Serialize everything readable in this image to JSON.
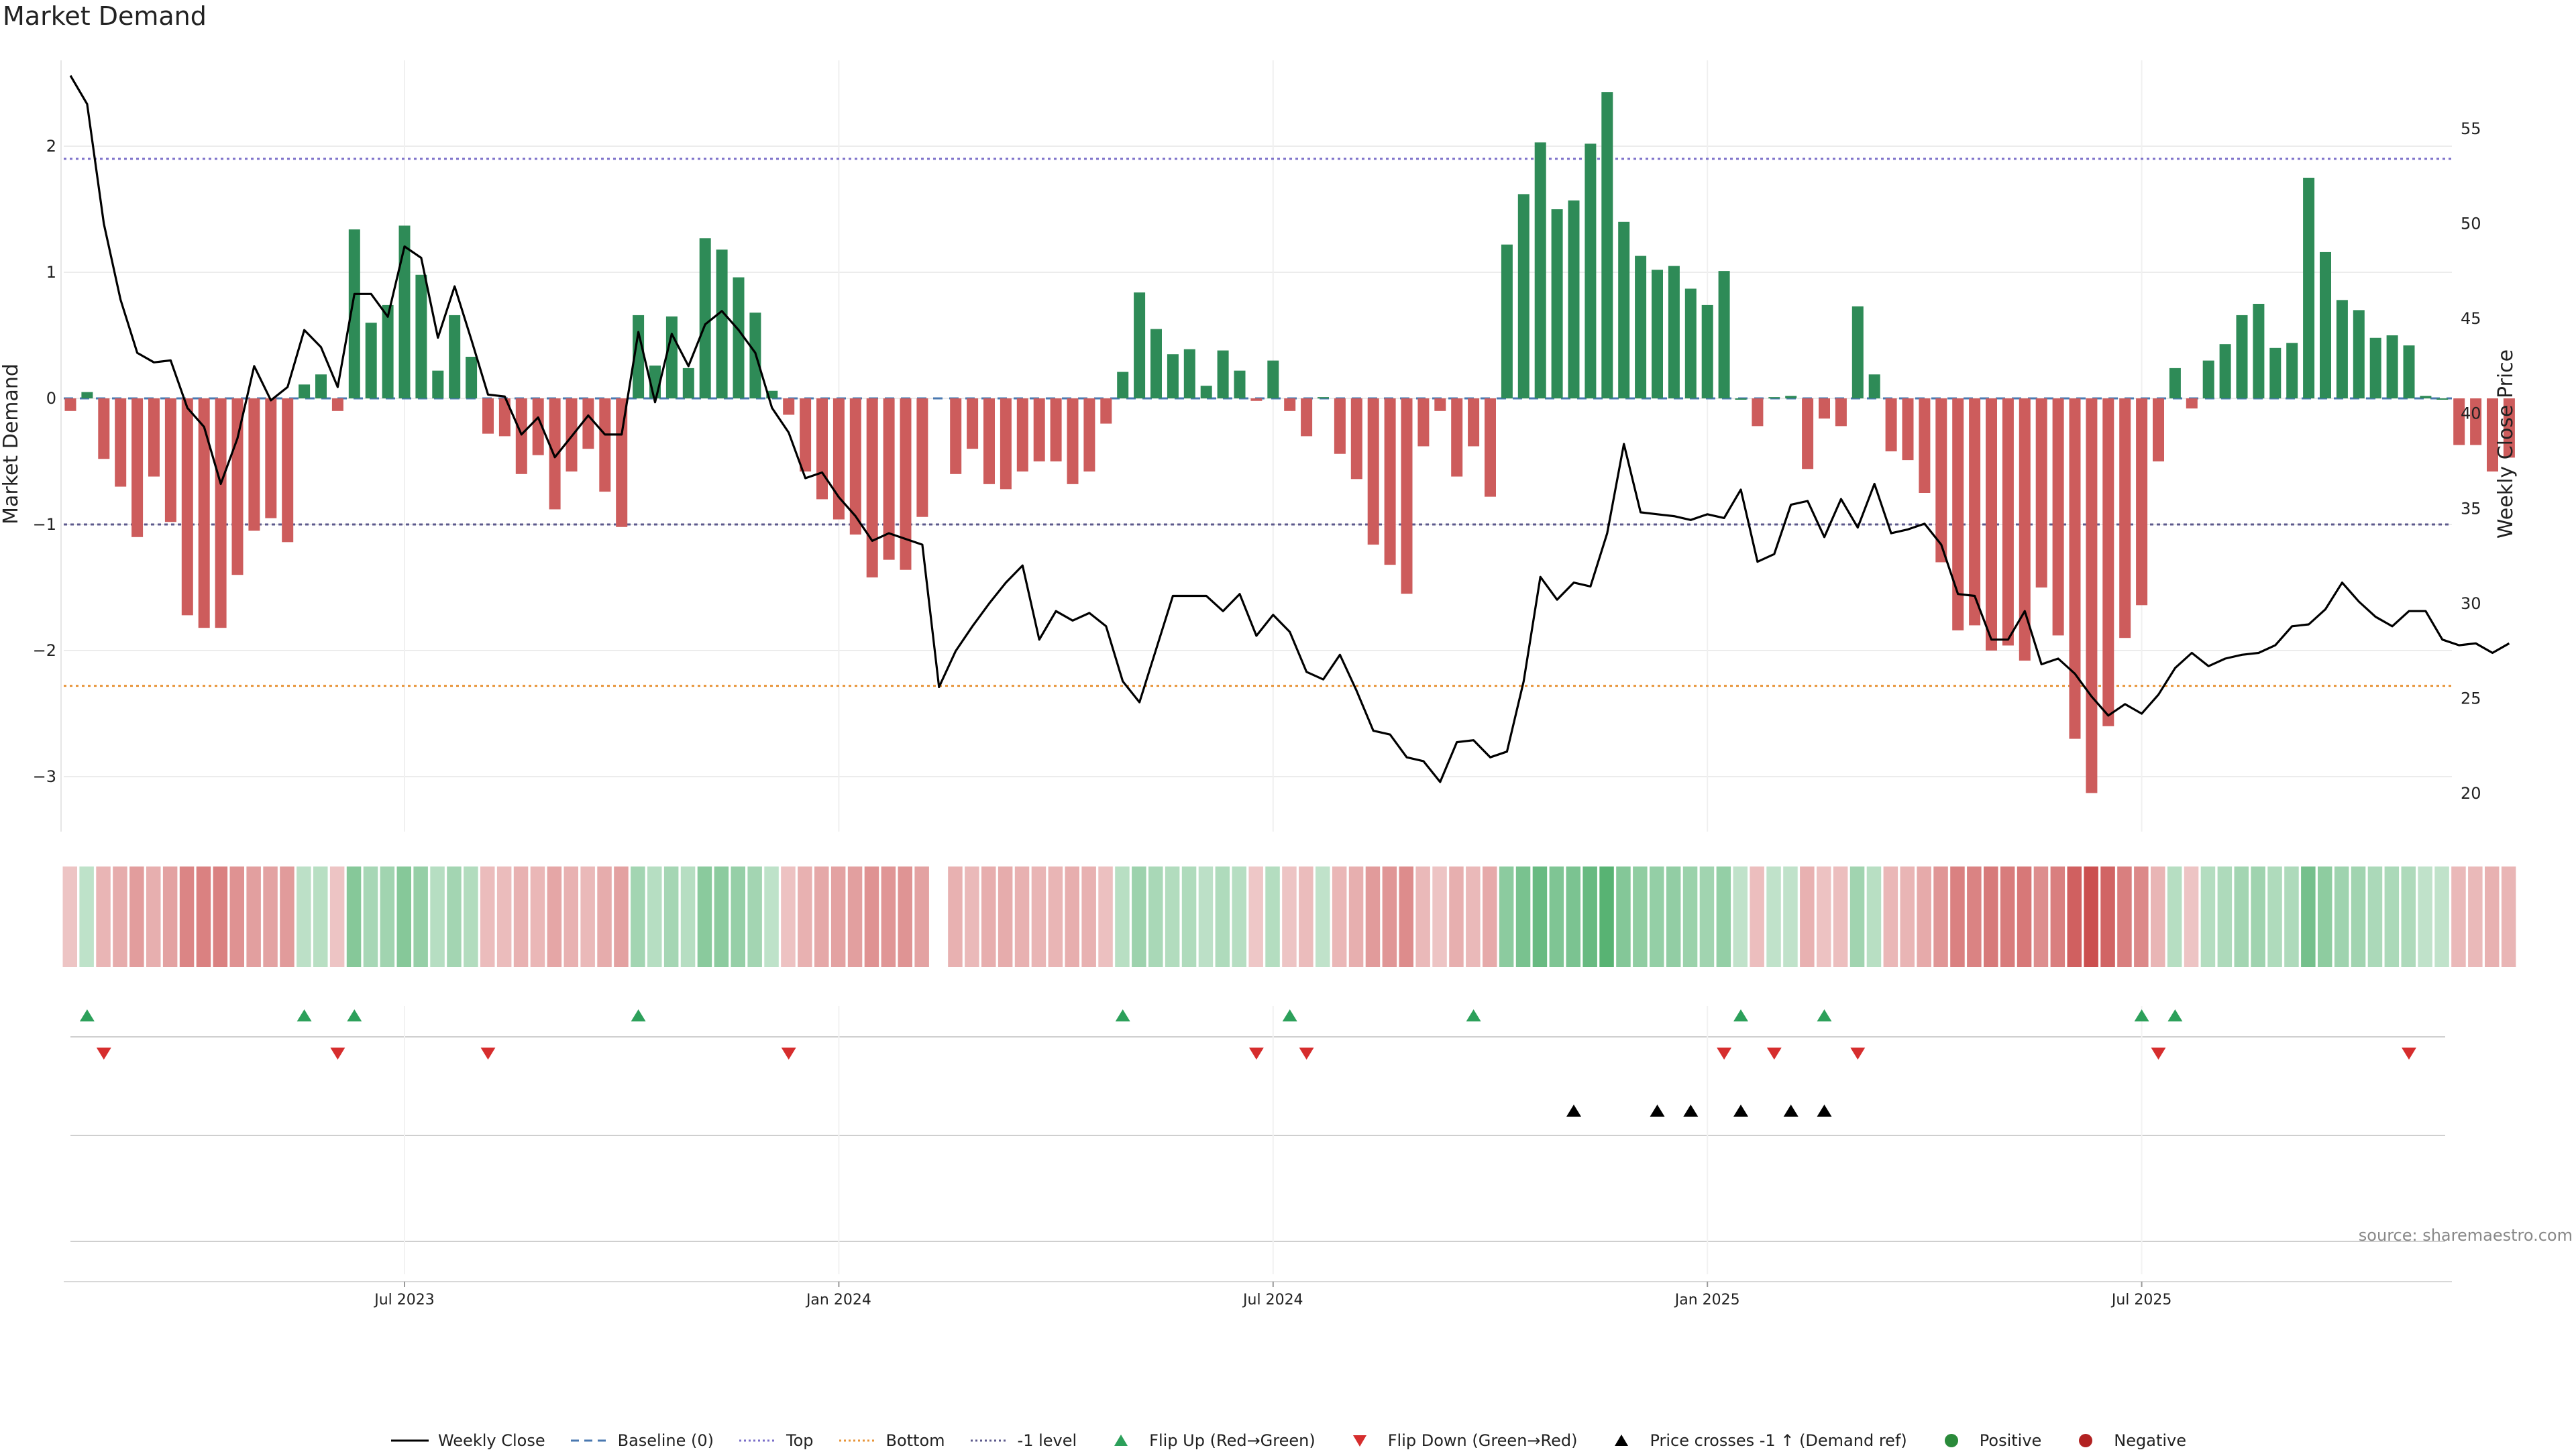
{
  "title": "Market Demand",
  "source": "source: sharemaestro.com",
  "chart_data": {
    "type": "bar",
    "title": "Market Demand",
    "ylabel": "Market Demand",
    "ylabel_right": "Weekly Close Price",
    "ylim": [
      -3.4,
      2.6
    ],
    "ylim_right": [
      18.4,
      59.5
    ],
    "yticks": [
      -3,
      -2,
      -1,
      0,
      1,
      2
    ],
    "yticks_right": [
      20,
      25,
      30,
      35,
      40,
      45,
      50,
      55
    ],
    "x_tick_labels": [
      "Jul 2023",
      "Jan 2024",
      "Jul 2024",
      "Jan 2025",
      "Jul 2025"
    ],
    "x_tick_weeks": [
      20,
      46,
      72,
      98,
      124
    ],
    "reference_lines": {
      "top": 1.9,
      "bottom": -2.28,
      "minus_one": -1.0,
      "baseline": 0
    },
    "demand": [
      -0.1,
      0.05,
      -0.48,
      -0.7,
      -1.1,
      -0.62,
      -0.98,
      -1.72,
      -1.82,
      -1.82,
      -1.4,
      -1.05,
      -0.95,
      -1.14,
      0.11,
      0.19,
      -0.1,
      1.34,
      0.6,
      0.74,
      1.37,
      0.98,
      0.22,
      0.66,
      0.33,
      -0.28,
      -0.3,
      -0.6,
      -0.45,
      -0.88,
      -0.58,
      -0.4,
      -0.74,
      -1.02,
      0.66,
      0.26,
      0.65,
      0.24,
      1.27,
      1.18,
      0.96,
      0.68,
      0.06,
      -0.13,
      -0.58,
      -0.8,
      -0.96,
      -1.08,
      -1.42,
      -1.28,
      -1.36,
      -0.94,
      null,
      -0.6,
      -0.4,
      -0.68,
      -0.72,
      -0.58,
      -0.5,
      -0.5,
      -0.68,
      -0.58,
      -0.2,
      0.21,
      0.84,
      0.55,
      0.35,
      0.39,
      0.1,
      0.38,
      0.22,
      -0.02,
      0.3,
      -0.1,
      -0.3,
      0.01,
      -0.44,
      -0.64,
      -1.16,
      -1.32,
      -1.55,
      -0.38,
      -0.1,
      -0.62,
      -0.38,
      -0.78,
      1.22,
      1.62,
      2.03,
      1.5,
      1.57,
      2.02,
      2.43,
      1.4,
      1.13,
      1.02,
      1.05,
      0.87,
      0.74,
      1.01,
      0.0,
      -0.22,
      0.01,
      0.02,
      -0.56,
      -0.16,
      -0.22,
      0.73,
      0.19,
      -0.42,
      -0.49,
      -0.75,
      -1.3,
      -1.84,
      -1.8,
      -2.0,
      -1.96,
      -2.08,
      -1.5,
      -1.88,
      -2.7,
      -3.13,
      -2.6,
      -1.9,
      -1.64,
      -0.5,
      0.24,
      -0.08,
      0.3,
      0.43,
      0.66,
      0.75,
      0.4,
      0.44,
      1.75,
      1.16,
      0.78,
      0.7,
      0.48,
      0.5,
      0.42,
      0.02,
      0.0,
      -0.37,
      -0.37,
      -0.58,
      -0.47
    ],
    "weekly_close": [
      57.8,
      56.3,
      50.0,
      46.0,
      43.2,
      42.7,
      42.8,
      40.3,
      39.3,
      36.3,
      38.7,
      42.5,
      40.7,
      41.4,
      44.4,
      43.5,
      41.4,
      46.3,
      46.3,
      45.1,
      48.8,
      48.2,
      44.0,
      46.7,
      43.9,
      41.0,
      40.9,
      38.9,
      39.8,
      37.7,
      38.8,
      39.9,
      38.9,
      38.9,
      44.3,
      40.6,
      44.2,
      42.5,
      44.7,
      45.4,
      44.4,
      43.2,
      40.3,
      39.0,
      36.6,
      36.9,
      35.6,
      34.6,
      33.3,
      33.7,
      33.4,
      33.1,
      25.6,
      27.5,
      28.8,
      30.0,
      31.1,
      32.0,
      28.1,
      29.6,
      29.1,
      29.5,
      28.8,
      25.9,
      24.8,
      27.6,
      30.4,
      30.4,
      30.4,
      29.6,
      30.5,
      28.3,
      29.4,
      28.5,
      26.4,
      26.0,
      27.3,
      25.4,
      23.3,
      23.1,
      21.9,
      21.7,
      20.6,
      22.7,
      22.8,
      21.9,
      22.2,
      25.9,
      31.4,
      30.2,
      31.1,
      30.9,
      33.7,
      38.4,
      34.8,
      34.7,
      34.6,
      34.4,
      34.7,
      34.5,
      36.0,
      32.2,
      32.6,
      35.2,
      35.4,
      33.5,
      35.5,
      34.0,
      36.3,
      33.7,
      33.9,
      34.2,
      33.1,
      30.5,
      30.4,
      28.1,
      28.1,
      29.6,
      26.8,
      27.1,
      26.3,
      25.1,
      24.1,
      24.7,
      24.2,
      25.2,
      26.6,
      27.4,
      26.7,
      27.1,
      27.3,
      27.4,
      27.8,
      28.8,
      28.9,
      29.7,
      31.1,
      30.1,
      29.3,
      28.8,
      29.6,
      29.6,
      28.1,
      27.8,
      27.9,
      27.4,
      27.9
    ],
    "flip_up_weeks": [
      1,
      14,
      17,
      34,
      63,
      73,
      84,
      100,
      105,
      124,
      126
    ],
    "flip_down_weeks": [
      2,
      16,
      25,
      43,
      71,
      74,
      99,
      102,
      107,
      125,
      140
    ],
    "price_cross_weeks": [
      90,
      95,
      97,
      100,
      103,
      105
    ]
  },
  "legend": [
    {
      "label": "Weekly Close",
      "symbol": "line-solid",
      "color": "#000000"
    },
    {
      "label": "Baseline (0)",
      "symbol": "line-dashed",
      "color": "#4a78b0"
    },
    {
      "label": "Top",
      "symbol": "line-dotted",
      "color": "#7b6fc9"
    },
    {
      "label": "Bottom",
      "symbol": "line-dotted",
      "color": "#e8953a"
    },
    {
      "label": "-1 level",
      "symbol": "line-dotted",
      "color": "#5d5a8c"
    },
    {
      "label": "Flip Up (Red→Green)",
      "symbol": "triangle-up",
      "color": "#2ca05a"
    },
    {
      "label": "Flip Down (Green→Red)",
      "symbol": "triangle-down",
      "color": "#d62d2d"
    },
    {
      "label": "Price crosses -1 ↑ (Demand ref)",
      "symbol": "triangle-up",
      "color": "#000000"
    },
    {
      "label": "Positive",
      "symbol": "dot",
      "color": "#2a8a3a"
    },
    {
      "label": "Negative",
      "symbol": "dot",
      "color": "#b22222"
    }
  ],
  "colors": {
    "positive_bar": "#2e8b57",
    "negative_bar": "#cd5c5c",
    "line": "#000000"
  }
}
